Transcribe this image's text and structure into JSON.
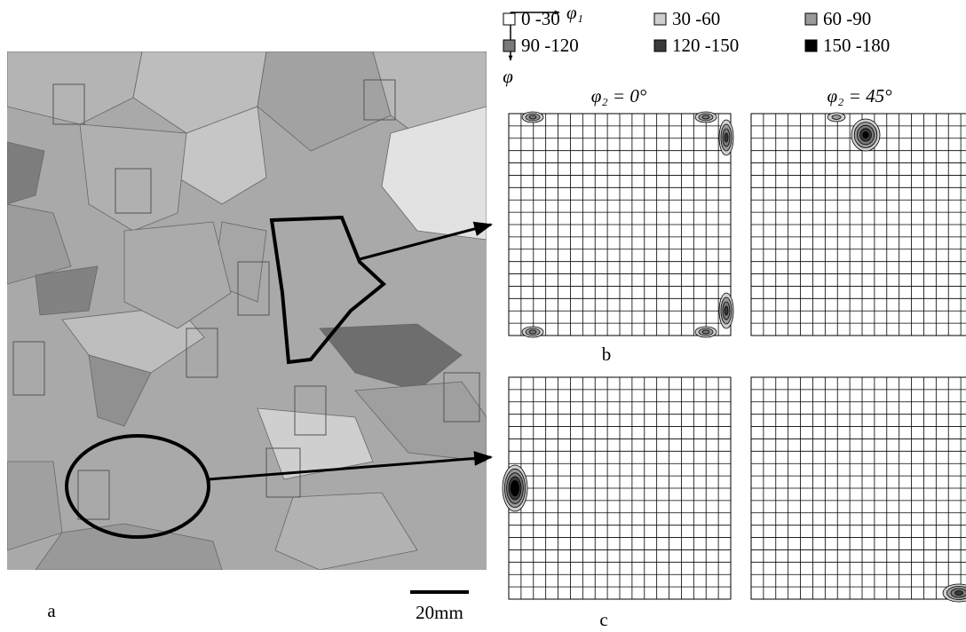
{
  "axes": {
    "horizontal": "φ₁",
    "vertical": "φ"
  },
  "legend": [
    {
      "label": "0 -30",
      "color": "#ffffff"
    },
    {
      "label": "30 -60",
      "color": "#cfcfcf"
    },
    {
      "label": "60 -90",
      "color": "#9a9a9a"
    },
    {
      "label": "90 -120",
      "color": "#7a7a7a"
    },
    {
      "label": "120 -150",
      "color": "#3a3a3a"
    },
    {
      "label": "150 -180",
      "color": "#000000"
    }
  ],
  "sections": [
    "φ₂ = 0°",
    "φ₂ = 45°"
  ],
  "panels": {
    "a": "a",
    "b": "b",
    "c": "c"
  },
  "scale_bar": "20mm"
}
